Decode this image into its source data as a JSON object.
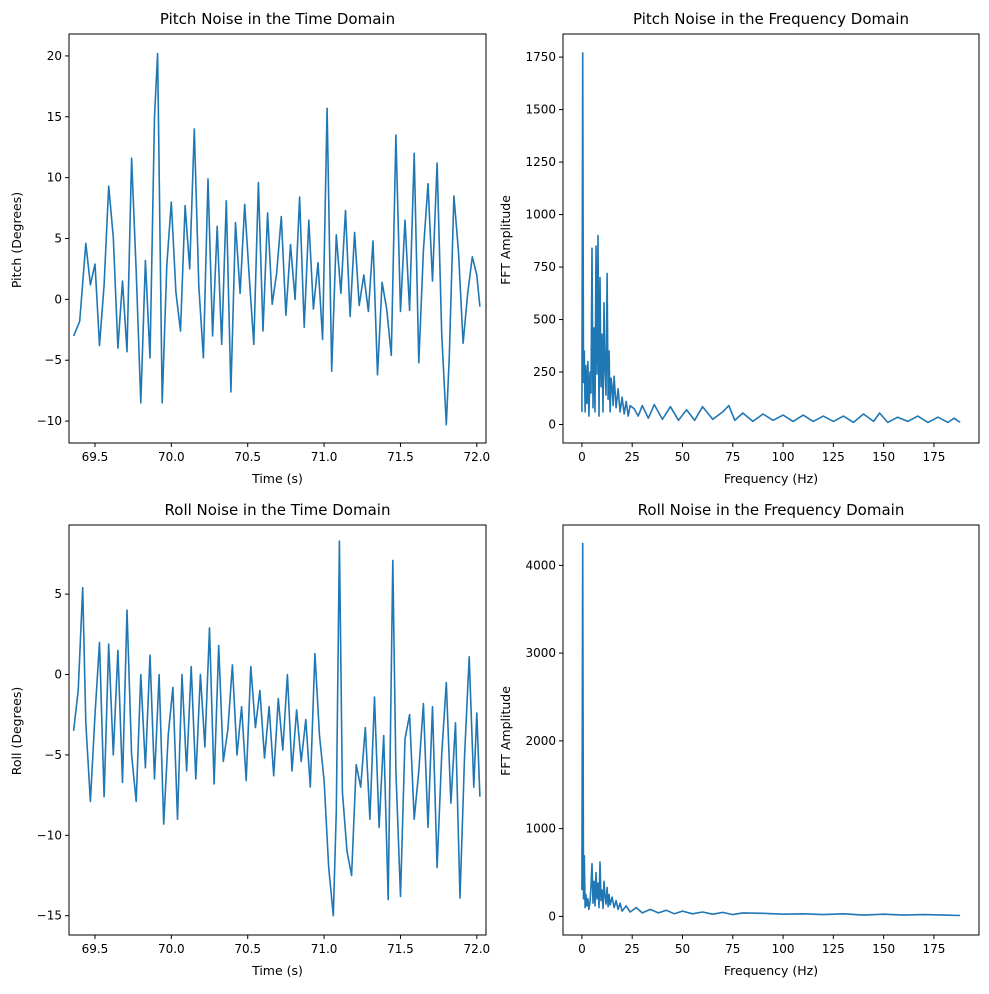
{
  "chart_data": [
    {
      "type": "line",
      "title": "Pitch Noise in the Time Domain",
      "xlabel": "Time (s)",
      "ylabel": "Pitch (Degrees)",
      "xlim": [
        69.33,
        72.06
      ],
      "ylim": [
        -11.8,
        21.8
      ],
      "xticks": [
        69.5,
        70.0,
        70.5,
        71.0,
        71.5,
        72.0
      ],
      "xtick_labels": [
        "69.5",
        "70.0",
        "70.5",
        "71.0",
        "71.5",
        "72.0"
      ],
      "yticks": [
        -10,
        -5,
        0,
        5,
        10,
        15,
        20
      ],
      "ytick_labels": [
        "−10",
        "−5",
        "0",
        "5",
        "10",
        "15",
        "20"
      ],
      "grid": false,
      "series": [
        {
          "color": "#1f77b4",
          "x": [
            69.36,
            69.4,
            69.44,
            69.47,
            69.5,
            69.53,
            69.56,
            69.59,
            69.62,
            69.65,
            69.68,
            69.71,
            69.74,
            69.77,
            69.8,
            69.83,
            69.86,
            69.89,
            69.91,
            69.94,
            69.97,
            70.0,
            70.03,
            70.06,
            70.09,
            70.12,
            70.15,
            70.18,
            70.21,
            70.24,
            70.27,
            70.3,
            70.33,
            70.36,
            70.39,
            70.42,
            70.45,
            70.48,
            70.51,
            70.54,
            70.57,
            70.6,
            70.63,
            70.66,
            70.69,
            70.72,
            70.75,
            70.78,
            70.81,
            70.84,
            70.87,
            70.9,
            70.93,
            70.96,
            70.99,
            71.02,
            71.05,
            71.08,
            71.11,
            71.14,
            71.17,
            71.2,
            71.23,
            71.26,
            71.29,
            71.32,
            71.35,
            71.38,
            71.41,
            71.44,
            71.47,
            71.5,
            71.53,
            71.56,
            71.59,
            71.62,
            71.65,
            71.68,
            71.71,
            71.74,
            71.77,
            71.8,
            71.82,
            71.85,
            71.88,
            71.91,
            71.94,
            71.97,
            72.0,
            72.02
          ],
          "y": [
            -3.0,
            -1.8,
            4.6,
            1.2,
            2.9,
            -3.8,
            1.2,
            9.3,
            5.1,
            -4.0,
            1.5,
            -4.3,
            11.6,
            2.3,
            -8.5,
            3.2,
            -4.8,
            15.0,
            20.2,
            -8.5,
            2.8,
            8.0,
            0.6,
            -2.6,
            7.7,
            2.5,
            14.0,
            1.1,
            -4.8,
            9.9,
            -3.0,
            6.0,
            -3.7,
            8.1,
            -7.6,
            6.3,
            0.5,
            7.8,
            1.9,
            -3.7,
            9.6,
            -2.6,
            7.1,
            -0.4,
            2.2,
            6.8,
            -1.3,
            4.5,
            0.0,
            8.4,
            -2.3,
            6.5,
            -0.8,
            3.0,
            -3.3,
            15.7,
            -5.9,
            5.3,
            0.5,
            7.3,
            -1.4,
            5.5,
            -0.5,
            2.0,
            -1.0,
            4.8,
            -6.2,
            1.4,
            -0.8,
            -4.6,
            13.5,
            -1.0,
            6.5,
            -0.9,
            12.0,
            -5.2,
            4.0,
            9.5,
            1.5,
            11.2,
            -2.8,
            -10.3,
            -4.7,
            8.5,
            3.9,
            -3.6,
            0.5,
            3.5,
            2.0,
            -0.6
          ]
        }
      ]
    },
    {
      "type": "line",
      "title": "Pitch Noise in the Frequency Domain",
      "xlabel": "Frequency (Hz)",
      "ylabel": "FFT Amplitude",
      "xlim": [
        -9.4,
        197.4
      ],
      "ylim": [
        -88,
        1860
      ],
      "xticks": [
        0,
        25,
        50,
        75,
        100,
        125,
        150,
        175
      ],
      "xtick_labels": [
        "0",
        "25",
        "50",
        "75",
        "100",
        "125",
        "150",
        "175"
      ],
      "yticks": [
        0,
        250,
        500,
        750,
        1000,
        1250,
        1500,
        1750
      ],
      "ytick_labels": [
        "0",
        "250",
        "500",
        "750",
        "1000",
        "1250",
        "1500",
        "1750"
      ],
      "grid": false,
      "series": [
        {
          "color": "#1f77b4",
          "x": [
            0.0,
            0.4,
            0.8,
            1.2,
            1.6,
            2.0,
            2.5,
            3.0,
            3.5,
            4.0,
            4.5,
            5.0,
            5.5,
            6.0,
            6.5,
            7.0,
            7.5,
            8.0,
            8.5,
            9.0,
            9.5,
            10.0,
            10.5,
            11.0,
            11.5,
            12.0,
            12.5,
            13.0,
            13.5,
            14.0,
            14.5,
            15.0,
            15.5,
            16.0,
            17.0,
            18.0,
            19.0,
            20.0,
            21.0,
            22.0,
            23.0,
            24.0,
            26.0,
            28.0,
            30.0,
            33.0,
            36.0,
            40.0,
            44.0,
            48.0,
            52.0,
            56.0,
            60.0,
            65.0,
            70.0,
            73.0,
            76.0,
            80.0,
            85.0,
            90.0,
            95.0,
            100.0,
            105.0,
            110.0,
            115.0,
            120.0,
            125.0,
            130.0,
            135.0,
            140.0,
            145.0,
            148.0,
            152.0,
            157.0,
            162.0,
            167.0,
            172.0,
            177.0,
            182.0,
            185.0,
            188.0
          ],
          "y": [
            60,
            1770,
            200,
            350,
            60,
            280,
            100,
            300,
            40,
            250,
            150,
            840,
            80,
            460,
            60,
            850,
            240,
            900,
            40,
            700,
            180,
            430,
            60,
            580,
            260,
            140,
            720,
            120,
            350,
            60,
            220,
            180,
            90,
            230,
            80,
            170,
            60,
            130,
            50,
            110,
            40,
            90,
            75,
            40,
            90,
            30,
            95,
            25,
            85,
            20,
            70,
            20,
            85,
            25,
            60,
            90,
            20,
            55,
            15,
            50,
            20,
            45,
            15,
            45,
            15,
            40,
            15,
            40,
            10,
            50,
            15,
            55,
            10,
            35,
            15,
            40,
            10,
            35,
            10,
            30,
            10
          ]
        }
      ]
    },
    {
      "type": "line",
      "title": "Roll Noise in the Time Domain",
      "xlabel": "Time (s)",
      "ylabel": "Roll (Degrees)",
      "xlim": [
        69.33,
        72.06
      ],
      "ylim": [
        -16.2,
        9.3
      ],
      "xticks": [
        69.5,
        70.0,
        70.5,
        71.0,
        71.5,
        72.0
      ],
      "xtick_labels": [
        "69.5",
        "70.0",
        "70.5",
        "71.0",
        "71.5",
        "72.0"
      ],
      "yticks": [
        -15,
        -10,
        -5,
        0,
        5
      ],
      "ytick_labels": [
        "−15",
        "−10",
        "−5",
        "0",
        "5"
      ],
      "grid": false,
      "series": [
        {
          "color": "#1f77b4",
          "x": [
            69.36,
            69.39,
            69.42,
            69.44,
            69.47,
            69.5,
            69.53,
            69.56,
            69.59,
            69.62,
            69.65,
            69.68,
            69.71,
            69.74,
            69.77,
            69.8,
            69.83,
            69.86,
            69.89,
            69.92,
            69.95,
            69.98,
            70.01,
            70.04,
            70.07,
            70.1,
            70.13,
            70.16,
            70.19,
            70.22,
            70.25,
            70.28,
            70.31,
            70.34,
            70.37,
            70.4,
            70.43,
            70.46,
            70.49,
            70.52,
            70.55,
            70.58,
            70.61,
            70.64,
            70.67,
            70.7,
            70.73,
            70.76,
            70.79,
            70.82,
            70.85,
            70.88,
            70.91,
            70.94,
            70.97,
            71.0,
            71.03,
            71.06,
            71.08,
            71.1,
            71.12,
            71.15,
            71.18,
            71.21,
            71.24,
            71.27,
            71.3,
            71.33,
            71.36,
            71.39,
            71.42,
            71.45,
            71.47,
            71.5,
            71.53,
            71.56,
            71.59,
            71.62,
            71.65,
            71.68,
            71.71,
            71.74,
            71.77,
            71.8,
            71.83,
            71.86,
            71.89,
            71.92,
            71.95,
            71.98,
            72.0,
            72.02
          ],
          "y": [
            -3.5,
            -1.0,
            5.4,
            -3.0,
            -7.9,
            -2.5,
            2.0,
            -7.6,
            1.9,
            -5.0,
            1.5,
            -6.7,
            4.0,
            -5.0,
            -7.9,
            0.0,
            -5.8,
            1.2,
            -6.5,
            0.0,
            -9.3,
            -3.7,
            -0.8,
            -9.0,
            0.0,
            -6.0,
            0.5,
            -6.5,
            0.0,
            -4.5,
            2.9,
            -6.8,
            1.8,
            -5.4,
            -3.4,
            0.6,
            -5.0,
            -2.0,
            -6.6,
            0.5,
            -3.3,
            -1.0,
            -5.2,
            -2.0,
            -6.3,
            -1.5,
            -4.7,
            0.0,
            -6.0,
            -2.2,
            -5.4,
            -2.8,
            -7.0,
            1.3,
            -3.8,
            -6.6,
            -12.0,
            -15.0,
            -8.5,
            8.3,
            -7.3,
            -11.0,
            -12.5,
            -5.6,
            -7.0,
            -3.3,
            -9.0,
            -1.4,
            -9.5,
            -3.8,
            -14.0,
            7.1,
            -6.0,
            -13.8,
            -4.0,
            -2.5,
            -9.0,
            -6.0,
            -1.8,
            -9.5,
            -2.0,
            -12.0,
            -5.0,
            -0.5,
            -8.0,
            -3.0,
            -13.9,
            -5.0,
            1.1,
            -7.0,
            -2.4,
            -7.6
          ]
        }
      ]
    },
    {
      "type": "line",
      "title": "Roll Noise in the Frequency Domain",
      "xlabel": "Frequency (Hz)",
      "ylabel": "FFT Amplitude",
      "xlim": [
        -9.4,
        197.4
      ],
      "ylim": [
        -212,
        4460
      ],
      "xticks": [
        0,
        25,
        50,
        75,
        100,
        125,
        150,
        175
      ],
      "xtick_labels": [
        "0",
        "25",
        "50",
        "75",
        "100",
        "125",
        "150",
        "175"
      ],
      "yticks": [
        0,
        1000,
        2000,
        3000,
        4000
      ],
      "ytick_labels": [
        "0",
        "1000",
        "2000",
        "3000",
        "4000"
      ],
      "grid": false,
      "series": [
        {
          "color": "#1f77b4",
          "x": [
            0.0,
            0.4,
            0.8,
            1.2,
            1.6,
            2.0,
            2.5,
            3.0,
            3.5,
            4.0,
            4.5,
            5.0,
            5.5,
            6.0,
            6.5,
            7.0,
            7.5,
            8.0,
            8.5,
            9.0,
            9.5,
            10.0,
            10.5,
            11.0,
            11.5,
            12.0,
            12.5,
            13.0,
            13.5,
            14.0,
            15.0,
            16.0,
            17.0,
            18.0,
            19.0,
            20.0,
            22.0,
            24.0,
            27.0,
            30.0,
            34.0,
            38.0,
            42.0,
            46.0,
            50.0,
            55.0,
            60.0,
            65.0,
            70.0,
            75.0,
            80.0,
            90.0,
            100.0,
            110.0,
            120.0,
            130.0,
            140.0,
            150.0,
            160.0,
            170.0,
            180.0,
            188.0
          ],
          "y": [
            300,
            4250,
            200,
            690,
            100,
            250,
            120,
            200,
            80,
            160,
            350,
            600,
            150,
            400,
            120,
            500,
            200,
            380,
            100,
            620,
            180,
            300,
            90,
            400,
            230,
            140,
            330,
            110,
            250,
            130,
            220,
            100,
            180,
            80,
            150,
            60,
            120,
            50,
            100,
            40,
            80,
            40,
            70,
            30,
            60,
            30,
            50,
            25,
            45,
            20,
            40,
            35,
            25,
            30,
            20,
            30,
            15,
            25,
            15,
            20,
            15,
            10
          ]
        }
      ]
    }
  ]
}
